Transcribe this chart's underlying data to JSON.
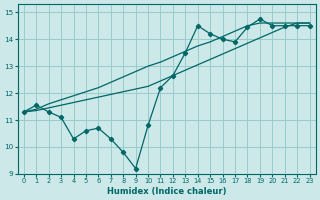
{
  "title": "",
  "xlabel": "Humidex (Indice chaleur)",
  "bg_color": "#cce8e8",
  "line_color": "#006666",
  "grid_color": "#99cccc",
  "xlim": [
    -0.5,
    23.5
  ],
  "ylim": [
    9,
    15.3
  ],
  "xticks": [
    0,
    1,
    2,
    3,
    4,
    5,
    6,
    7,
    8,
    9,
    10,
    11,
    12,
    13,
    14,
    15,
    16,
    17,
    18,
    19,
    20,
    21,
    22,
    23
  ],
  "yticks": [
    9,
    10,
    11,
    12,
    13,
    14,
    15
  ],
  "line1_x": [
    0,
    1,
    2,
    3,
    4,
    5,
    6,
    7,
    8,
    9,
    10,
    11,
    12,
    13,
    14,
    15,
    16,
    17,
    18,
    19,
    20,
    21,
    22,
    23
  ],
  "line1_y": [
    11.3,
    11.55,
    11.3,
    11.1,
    10.3,
    10.6,
    10.7,
    10.3,
    9.8,
    9.2,
    10.8,
    12.2,
    12.65,
    13.5,
    14.5,
    14.2,
    14.0,
    13.9,
    14.45,
    14.75,
    14.5,
    14.5,
    14.5,
    14.5
  ],
  "line2_x": [
    0,
    1,
    2,
    3,
    4,
    5,
    6,
    7,
    8,
    9,
    10,
    11,
    12,
    13,
    14,
    15,
    16,
    17,
    18,
    19,
    20,
    21,
    22,
    23
  ],
  "line2_y": [
    11.3,
    11.35,
    11.45,
    11.55,
    11.65,
    11.75,
    11.85,
    11.95,
    12.05,
    12.15,
    12.25,
    12.45,
    12.65,
    12.85,
    13.05,
    13.25,
    13.45,
    13.65,
    13.85,
    14.05,
    14.25,
    14.45,
    14.6,
    14.6
  ],
  "line3_x": [
    0,
    1,
    2,
    3,
    4,
    5,
    6,
    7,
    8,
    9,
    10,
    11,
    12,
    13,
    14,
    15,
    16,
    17,
    18,
    19,
    20,
    21,
    22,
    23
  ],
  "line3_y": [
    11.3,
    11.4,
    11.6,
    11.75,
    11.9,
    12.05,
    12.2,
    12.4,
    12.6,
    12.8,
    13.0,
    13.15,
    13.35,
    13.55,
    13.75,
    13.9,
    14.1,
    14.3,
    14.5,
    14.6,
    14.6,
    14.6,
    14.6,
    14.6
  ]
}
